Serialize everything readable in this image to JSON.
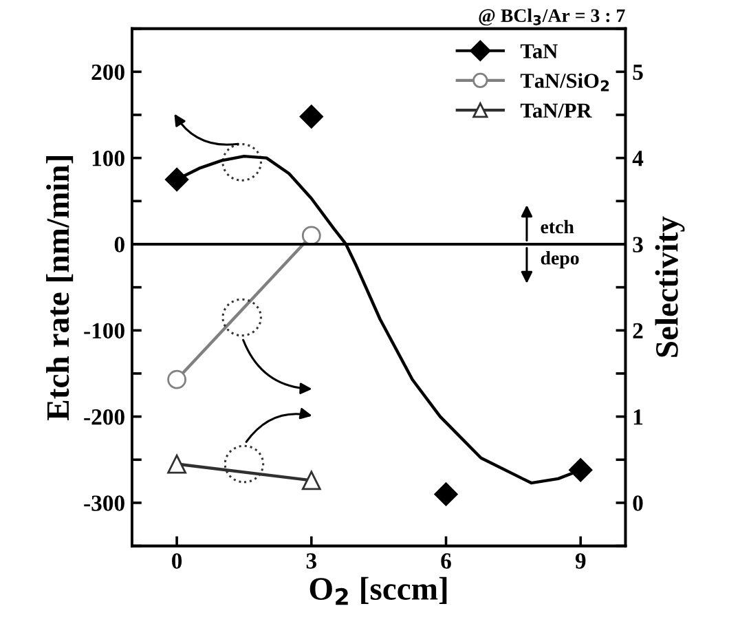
{
  "chart_data": {
    "type": "scatter",
    "xlabel": "O$_{2}$ [sccm]",
    "ylabel": "Etch rate [nm/min]",
    "y2label": "Selectivity",
    "annotations": [
      "@ BCl$_{3}$/Ar = 3 : 7",
      "etch",
      "depo"
    ],
    "x": [
      0,
      3,
      6,
      9
    ],
    "series": [
      {
        "name": "TaN",
        "color": "#000000",
        "marker": "diamond",
        "values": [
          75,
          148,
          -290,
          -262
        ]
      },
      {
        "type": "line",
        "color": "#000000",
        "marker": "none",
        "x": [
          0,
          0.5,
          1,
          1.5,
          2,
          2.5,
          3,
          3.5,
          3.77,
          4,
          4.53,
          5.25,
          5.87,
          6.78,
          7.9,
          8.5,
          9
        ],
        "values": [
          75,
          88,
          97,
          102,
          100,
          82,
          53,
          18,
          0,
          -25,
          -87,
          -157,
          -200,
          -248,
          -277,
          -272,
          -262
        ]
      },
      {
        "name": "TaN/SiO$_{2}$",
        "type": "line",
        "axis": "y2",
        "color": "#808080",
        "marker": "circle",
        "values": [
          1.43,
          3.1,
          null,
          null
        ]
      },
      {
        "name": "TaN/PR",
        "type": "line",
        "axis": "y2",
        "color": "#303030",
        "marker": "triangle",
        "values": [
          0.45,
          0.26,
          null,
          null
        ]
      }
    ],
    "xlim": [
      -1,
      10
    ],
    "xticks": [
      0,
      3,
      6,
      9
    ],
    "ylim": [
      -350,
      250
    ],
    "yticks": [
      {
        "value": -350,
        "label": null
      },
      -300,
      {
        "value": -250,
        "label": null
      },
      -200,
      {
        "value": -150,
        "label": null
      },
      -100,
      {
        "value": -50,
        "label": null
      },
      0,
      {
        "value": 50,
        "label": null
      },
      100,
      {
        "value": 150,
        "label": null
      },
      200,
      {
        "value": 250,
        "label": null
      }
    ],
    "y2lim": [
      -0.5,
      5.5
    ],
    "y2ticks": [
      {
        "value": -0.5,
        "label": null
      },
      0,
      {
        "value": 0.5,
        "label": null
      },
      1,
      {
        "value": 1.5,
        "label": null
      },
      2,
      {
        "value": 2.5,
        "label": null
      },
      3,
      {
        "value": 3.5,
        "label": null
      },
      4,
      {
        "value": 4.5,
        "label": null
      },
      5,
      {
        "value": 5.5,
        "label": null
      }
    ],
    "ref_lines": [
      {
        "axis": "y",
        "value": 0,
        "color": "#000000",
        "line_style": "solid"
      }
    ],
    "grid": false,
    "legend": "top right",
    "line_style": "solid"
  }
}
